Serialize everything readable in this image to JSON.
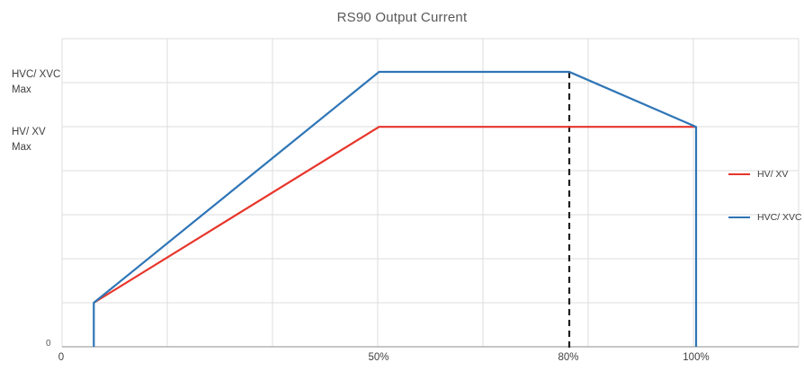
{
  "chart_data": {
    "type": "line",
    "title": "RS90 Output Current",
    "x_axis": {
      "unit": "percent",
      "range": [
        0,
        116.7
      ],
      "ticks": [
        {
          "value": 0,
          "label": "0"
        },
        {
          "value": 50,
          "label": "50%"
        },
        {
          "value": 80,
          "label": "80%"
        },
        {
          "value": 100,
          "label": "100%"
        }
      ]
    },
    "y_axis": {
      "range_norm": [
        0,
        1.12
      ],
      "labels": [
        {
          "value": 1.0,
          "lines": [
            "HVC/ XVC",
            "Max"
          ]
        },
        {
          "value": 0.8,
          "lines": [
            "HV/ XV",
            "Max"
          ]
        },
        {
          "value": 0,
          "lines": [
            "0"
          ]
        }
      ]
    },
    "series": [
      {
        "name": "HV/ XV",
        "color": "#e8352b",
        "points": [
          [
            5,
            0.16
          ],
          [
            50,
            0.8
          ],
          [
            100,
            0.8
          ]
        ]
      },
      {
        "name": "HVC/ XVC",
        "color": "#2e75b6",
        "points": [
          [
            5,
            0
          ],
          [
            5,
            0.16
          ],
          [
            50,
            1.0
          ],
          [
            80,
            1.0
          ],
          [
            100,
            0.8
          ],
          [
            100,
            0
          ]
        ]
      }
    ],
    "reference_line": {
      "x": 80,
      "style": "dashed",
      "color": "#1f1f1f"
    },
    "grid_on": true,
    "grid_color": "#dcdcdc",
    "axis_color": "#b3b3b3",
    "text_color": "#595959",
    "legend_position": "right"
  }
}
